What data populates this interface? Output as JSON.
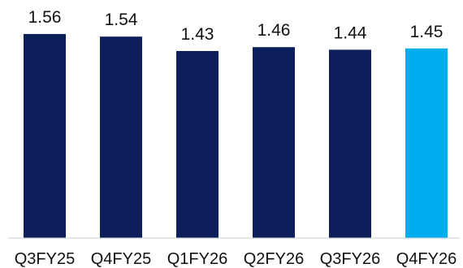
{
  "chart_data": {
    "type": "bar",
    "categories": [
      "Q3FY25",
      "Q4FY25",
      "Q1FY26",
      "Q2FY26",
      "Q3FY26",
      "Q4FY26"
    ],
    "values": [
      1.56,
      1.54,
      1.43,
      1.46,
      1.44,
      1.45
    ],
    "data_labels": [
      "1.56",
      "1.54",
      "1.43",
      "1.46",
      "1.44",
      "1.45"
    ],
    "title": "",
    "xlabel": "",
    "ylabel": "",
    "ylim": [
      0,
      1.8
    ],
    "grid": false,
    "legend": "none",
    "colors": [
      "#0c1f5b",
      "#0c1f5b",
      "#0c1f5b",
      "#0c1f5b",
      "#0c1f5b",
      "#00aeef"
    ]
  }
}
